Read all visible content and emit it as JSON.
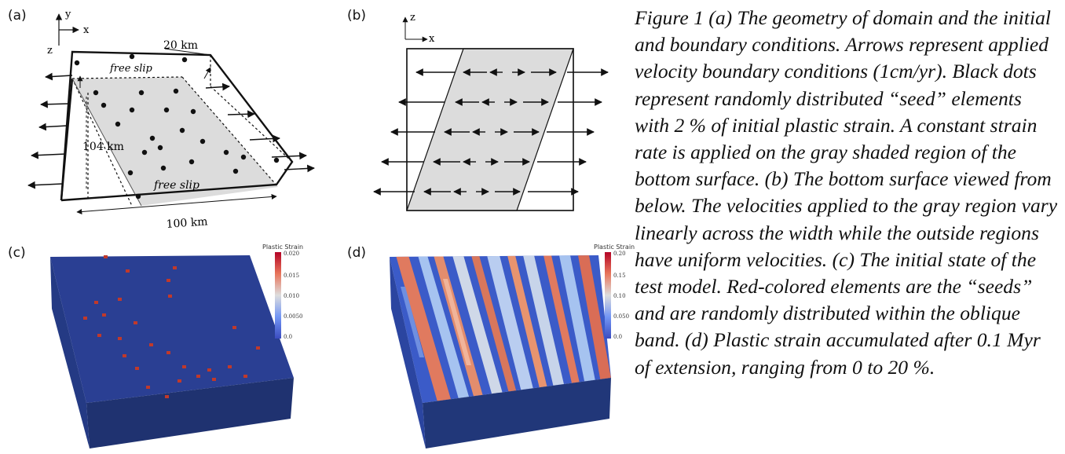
{
  "panels": {
    "a": {
      "label": "(a)",
      "axis_y": "y",
      "axis_x": "x",
      "axis_z": "z",
      "dim_depth": "20 km",
      "dim_width": "104 km",
      "dim_length": "100 km",
      "top_surface": "free slip",
      "bottom_surface": "free slip"
    },
    "b": {
      "label": "(b)",
      "axis_z": "z",
      "axis_x": "x"
    },
    "c": {
      "label": "(c)",
      "colorbar_title": "Plastic Strain",
      "colorbar_ticks": [
        "0.020",
        "0.015",
        "0.010",
        "0.0050",
        "0.0"
      ]
    },
    "d": {
      "label": "(d)",
      "colorbar_title": "Plastic Strain",
      "colorbar_ticks": [
        "0.20",
        "0.15",
        "0.10",
        "0.050",
        "0.0"
      ]
    }
  },
  "caption": "Figure 1 (a) The geometry of domain and the initial and boundary conditions. Arrows represent applied velocity boundary conditions (1cm/yr). Black dots represent randomly distributed “seed” elements with 2 % of initial plastic strain. A constant strain rate is applied on the gray shaded region of the bottom surface. (b) The bottom surface viewed from below. The velocities applied to the gray region vary linearly across the width while the outside regions have uniform velocities. (c) The initial state of the test model. Red-colored elements are the “seeds” and are randomly distributed within the oblique band. (d) Plastic strain accumulated after 0.1 Myr of extension, ranging from 0 to 20 %."
}
